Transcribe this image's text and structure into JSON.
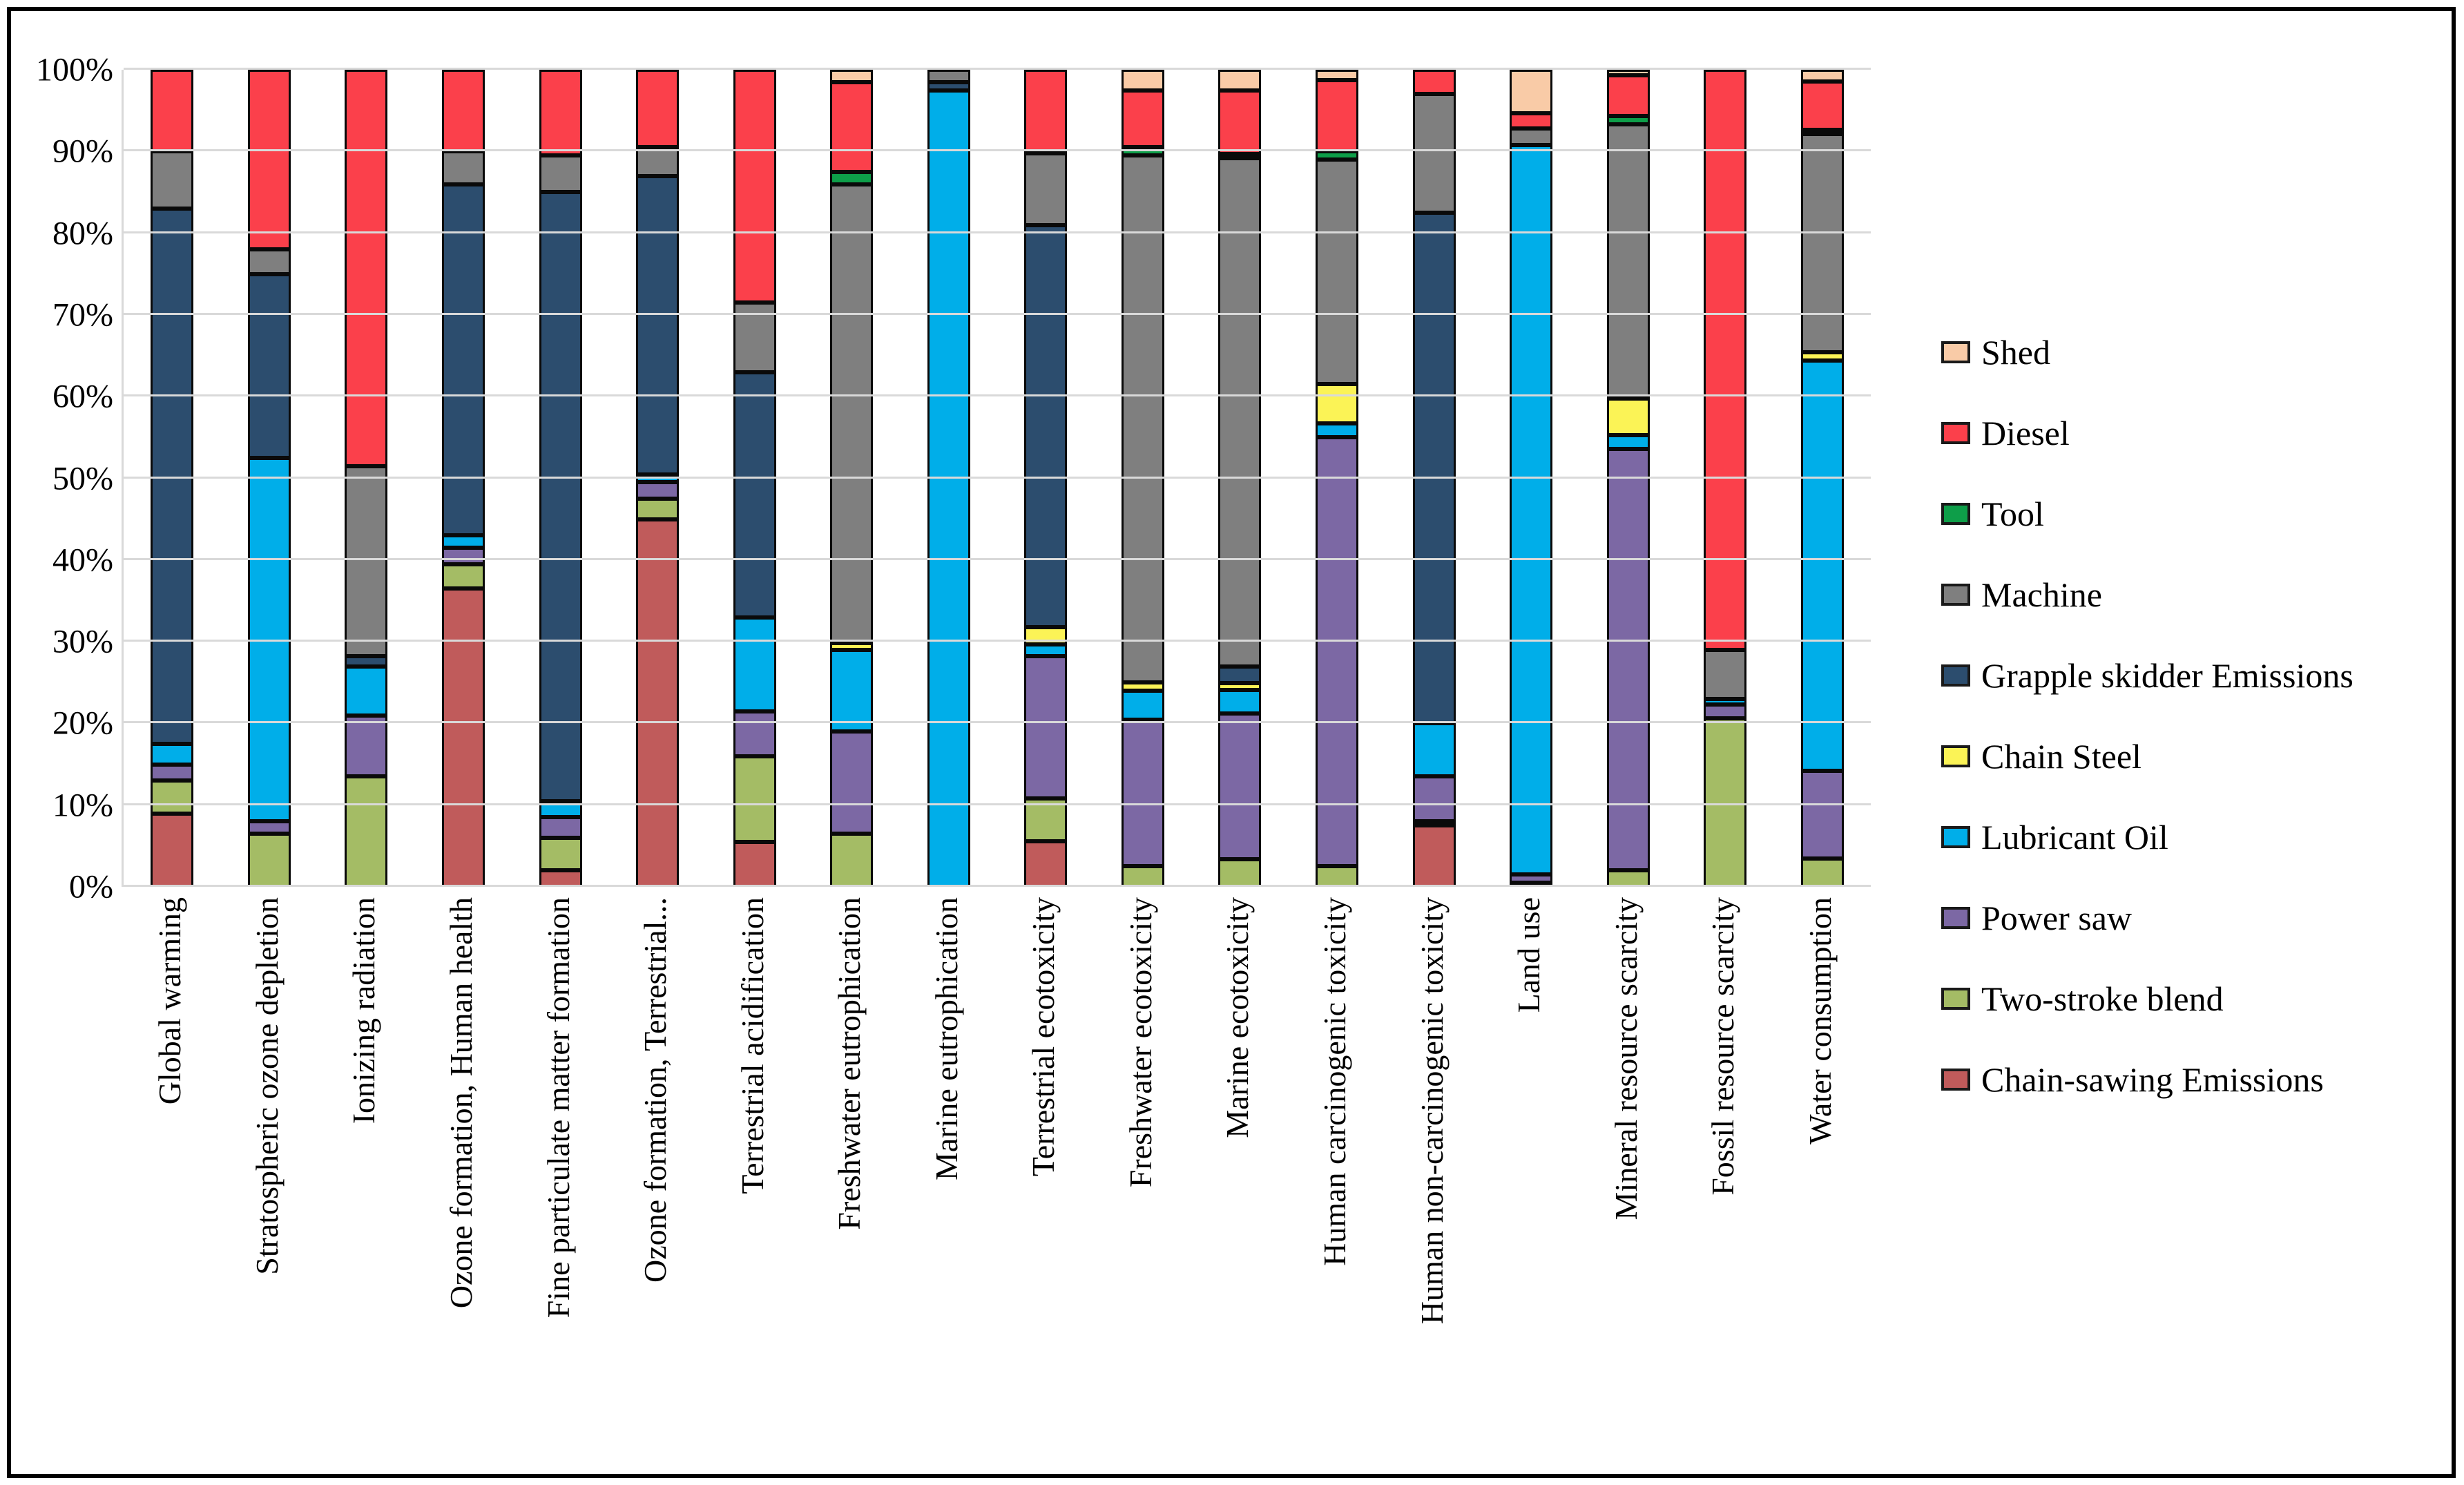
{
  "figure": {
    "background": "#ffffff",
    "frame_color": "#000000",
    "gridline_color": "#d9d9d9"
  },
  "y_axis": {
    "tick_labels": [
      "100%",
      "90%",
      "80%",
      "70%",
      "60%",
      "50%",
      "40%",
      "30%",
      "20%",
      "10%",
      "0%"
    ],
    "min": 0,
    "max": 100,
    "grid_step": 10
  },
  "legend": {
    "position": "right",
    "items": [
      {
        "label": "Shed",
        "color": "#f9cba7"
      },
      {
        "label": "Diesel",
        "color": "#fb404b"
      },
      {
        "label": "Tool",
        "color": "#0e9e49"
      },
      {
        "label": "Machine",
        "color": "#7f7f7f"
      },
      {
        "label": "Grapple skidder Emissions",
        "color": "#2c4d6e"
      },
      {
        "label": "Chain Steel",
        "color": "#fbf356"
      },
      {
        "label": "Lubricant Oil",
        "color": "#00aee9"
      },
      {
        "label": "Power saw",
        "color": "#7c68a4"
      },
      {
        "label": "Two-stroke blend",
        "color": "#a4bc65"
      },
      {
        "label": "Chain-sawing Emissions",
        "color": "#c05b5b"
      }
    ]
  },
  "chart_data": {
    "type": "bar",
    "stacked": true,
    "normalized_percent": true,
    "grid": true,
    "ylim": [
      0,
      100
    ],
    "categories": [
      "Global warming",
      "Stratospheric ozone depletion",
      "Ionizing radiation",
      "Ozone formation, Human health",
      "Fine particulate matter formation",
      "Ozone formation, Terrestrial...",
      "Terrestrial acidification",
      "Freshwater eutrophication",
      "Marine eutrophication",
      "Terrestrial ecotoxicity",
      "Freshwater ecotoxicity",
      "Marine ecotoxicity",
      "Human carcinogenic toxicity",
      "Human non-carcinogenic toxicity",
      "Land use",
      "Mineral resource scarcity",
      "Fossil resource scarcity",
      "Water consumption"
    ],
    "series_order": "bottom_to_top",
    "series": [
      {
        "name": "Chain-sawing Emissions",
        "color": "#c05b5b",
        "values": [
          9,
          0,
          0,
          36.5,
          2,
          45,
          5.5,
          0,
          0,
          5.6,
          0,
          0,
          0,
          7.5,
          0.5,
          0,
          0,
          0
        ]
      },
      {
        "name": "Two-stroke blend",
        "color": "#a4bc65",
        "values": [
          4,
          6.5,
          13.5,
          3,
          4,
          2.5,
          10.5,
          6.5,
          0,
          5.2,
          2.5,
          3.4,
          2.5,
          0.5,
          0,
          2,
          20.6,
          3.5
        ]
      },
      {
        "name": "Power saw",
        "color": "#7c68a4",
        "values": [
          2,
          1.5,
          7.5,
          2,
          2.5,
          2,
          5.5,
          12.5,
          0,
          17.4,
          18,
          17.8,
          52.5,
          5.5,
          1,
          51.6,
          1.7,
          10.7
        ]
      },
      {
        "name": "Lubricant Oil",
        "color": "#00aee9",
        "values": [
          2.5,
          44.5,
          6,
          1.5,
          2,
          1,
          11.5,
          10,
          97.5,
          1.5,
          3.5,
          2.9,
          1.7,
          6.5,
          89.3,
          1.7,
          0.7,
          50.2
        ]
      },
      {
        "name": "Chain Steel",
        "color": "#fbf356",
        "values": [
          0,
          0,
          0,
          0,
          0,
          0,
          0,
          0.8,
          0,
          2.1,
          1,
          0.8,
          4.8,
          0,
          0,
          4.5,
          0,
          1
        ]
      },
      {
        "name": "Grapple skidder Emissions",
        "color": "#2c4d6e",
        "values": [
          65.5,
          22.5,
          1.2,
          43,
          74.5,
          36.5,
          30,
          0,
          1,
          49.2,
          0,
          2.1,
          0,
          62.5,
          0,
          0,
          0,
          0
        ]
      },
      {
        "name": "Machine",
        "color": "#7f7f7f",
        "values": [
          7,
          3,
          23.3,
          4,
          4.5,
          3.5,
          8.5,
          56.2,
          1.5,
          8.8,
          64.5,
          62.2,
          27.5,
          14.5,
          2,
          33.5,
          6,
          26.7
        ]
      },
      {
        "name": "Tool",
        "color": "#0e9e49",
        "values": [
          0,
          0,
          0,
          0,
          0,
          0,
          0,
          1.5,
          0,
          0,
          1,
          0.5,
          1,
          0,
          0,
          1,
          0,
          0.5
        ]
      },
      {
        "name": "Diesel",
        "color": "#fb404b",
        "values": [
          10,
          22,
          48.5,
          10,
          10.5,
          9.5,
          28.5,
          11,
          0,
          10.2,
          7,
          7.8,
          8.7,
          3,
          1.9,
          5,
          71,
          6
        ]
      },
      {
        "name": "Shed",
        "color": "#f9cba7",
        "values": [
          0,
          0,
          0,
          0,
          0,
          0,
          0,
          1.5,
          0,
          0,
          2.5,
          2.5,
          1.3,
          0,
          5.3,
          0.7,
          0,
          1.4
        ]
      }
    ]
  }
}
